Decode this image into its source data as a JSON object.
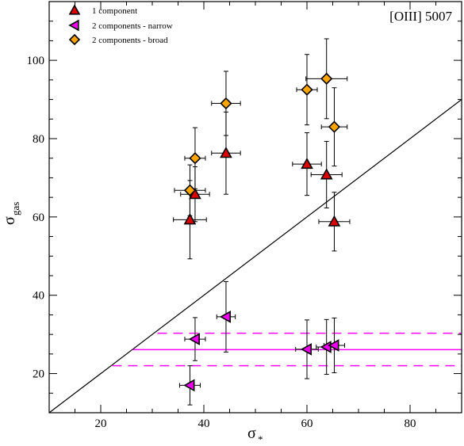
{
  "chart_data": {
    "type": "scatter",
    "annotation": "[OIII] 5007",
    "xlabel": "σ",
    "xlabel_sub": "*",
    "ylabel": "σ",
    "ylabel_sub": "gas",
    "xlim": [
      10,
      90
    ],
    "ylim": [
      10,
      115
    ],
    "xticks": [
      20,
      40,
      60,
      80
    ],
    "yticks": [
      20,
      40,
      60,
      80,
      100
    ],
    "legend_position": "top-left",
    "colors": {
      "one_component": "#dd0000",
      "narrow": "#ee00ee",
      "broad": "#ffa500",
      "hlines": "#ff00ff",
      "diagonal": "#000000"
    },
    "series": [
      {
        "name": "1 component",
        "marker": "triangle-up",
        "points": [
          {
            "x": 37.3,
            "y": 59.3,
            "xerr": 3.2,
            "yerr": 10.0
          },
          {
            "x": 38.3,
            "y": 65.8,
            "xerr": 2.8,
            "yerr": 7.0
          },
          {
            "x": 44.3,
            "y": 76.3,
            "xerr": 2.8,
            "yerr": 10.5
          },
          {
            "x": 60.0,
            "y": 73.5,
            "xerr": 2.8,
            "yerr": 8.0
          },
          {
            "x": 63.8,
            "y": 70.8,
            "xerr": 3.0,
            "yerr": 8.5
          },
          {
            "x": 65.3,
            "y": 58.8,
            "xerr": 3.0,
            "yerr": 7.5
          }
        ]
      },
      {
        "name": "2 components - narrow",
        "marker": "triangle-left",
        "points": [
          {
            "x": 37.3,
            "y": 17.0,
            "xerr": 2.0,
            "yerr": 5.0
          },
          {
            "x": 38.3,
            "y": 28.8,
            "xerr": 2.0,
            "yerr": 5.5
          },
          {
            "x": 44.3,
            "y": 34.5,
            "xerr": 1.8,
            "yerr": 9.0
          },
          {
            "x": 60.0,
            "y": 26.2,
            "xerr": 2.2,
            "yerr": 7.5
          },
          {
            "x": 63.8,
            "y": 26.8,
            "xerr": 2.0,
            "yerr": 7.0
          },
          {
            "x": 65.3,
            "y": 27.2,
            "xerr": 2.0,
            "yerr": 7.0
          }
        ]
      },
      {
        "name": "2 components - broad",
        "marker": "diamond",
        "points": [
          {
            "x": 37.3,
            "y": 66.8,
            "xerr": 3.0,
            "yerr": 6.5
          },
          {
            "x": 38.3,
            "y": 75.0,
            "xerr": 2.0,
            "yerr": 7.8
          },
          {
            "x": 44.3,
            "y": 89.0,
            "xerr": 2.8,
            "yerr": 8.2
          },
          {
            "x": 60.0,
            "y": 92.5,
            "xerr": 2.0,
            "yerr": 9.0
          },
          {
            "x": 63.8,
            "y": 95.3,
            "xerr": 4.0,
            "yerr": 10.2
          },
          {
            "x": 65.3,
            "y": 83.0,
            "xerr": 2.5,
            "yerr": 10.0
          }
        ]
      }
    ],
    "reference_lines": {
      "one_to_one": {
        "x": [
          10,
          90
        ],
        "y": [
          10,
          90
        ]
      },
      "mean_narrow": {
        "y": 26.1,
        "x": [
          26.2,
          90
        ],
        "style": "solid"
      },
      "upper_band": {
        "y": 30.3,
        "x": [
          31.0,
          90
        ],
        "style": "dashed"
      },
      "lower_band": {
        "y": 22.0,
        "x": [
          22.2,
          90
        ],
        "style": "dashed"
      }
    }
  }
}
